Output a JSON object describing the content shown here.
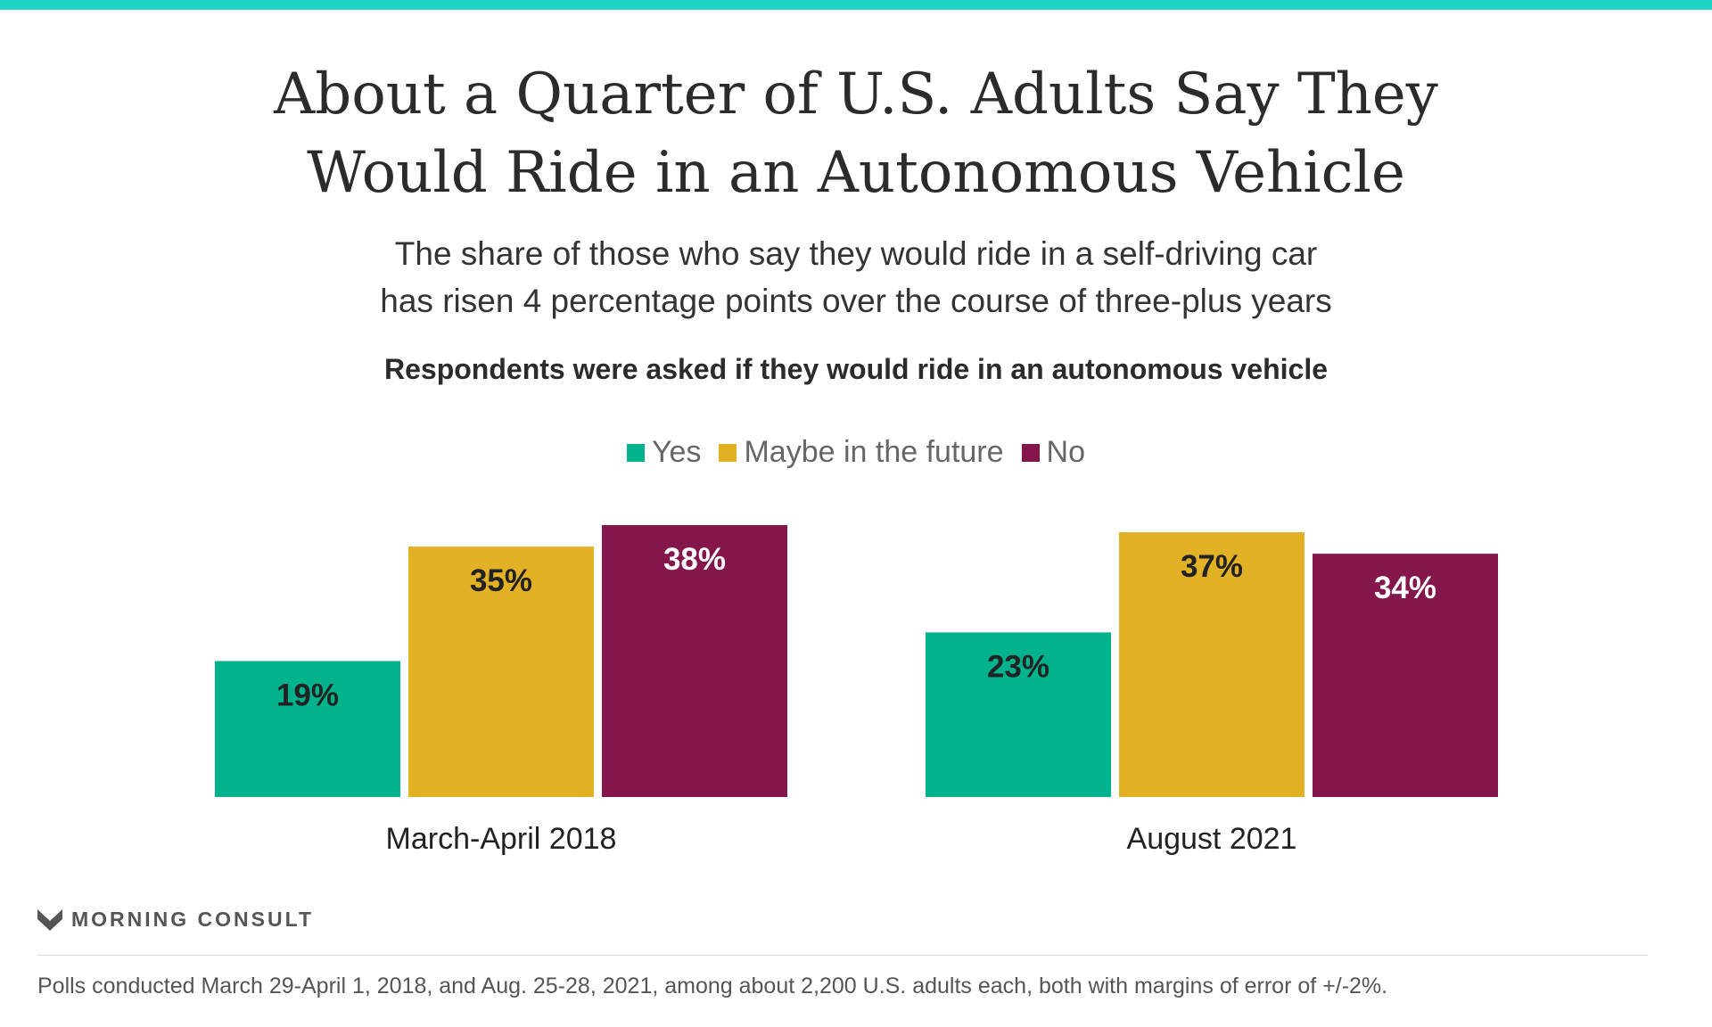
{
  "colors": {
    "top_bar": "#1fd3c6",
    "yes": "#00b38c",
    "maybe": "#e3b125",
    "no": "#84164c",
    "label_dark": "#222222",
    "label_light": "#ffffff"
  },
  "header": {
    "title_line1": "About a Quarter of U.S. Adults Say They",
    "title_line2": "Would Ride in an Autonomous Vehicle",
    "subtitle_line1": "The share of those who say they would ride in a self-driving car",
    "subtitle_line2": "has risen 4 percentage points over the course of three-plus years",
    "question": "Respondents were asked if they would ride in an autonomous vehicle"
  },
  "chart_data": {
    "type": "bar",
    "categories": [
      "March-April 2018",
      "August 2021"
    ],
    "series": [
      {
        "name": "Yes",
        "values": [
          19,
          23
        ]
      },
      {
        "name": "Maybe in the future",
        "values": [
          35,
          37
        ]
      },
      {
        "name": "No",
        "values": [
          38,
          34
        ]
      }
    ],
    "value_labels": [
      [
        "19%",
        "23%"
      ],
      [
        "35%",
        "37%"
      ],
      [
        "38%",
        "34%"
      ]
    ],
    "ylim": [
      0,
      38
    ],
    "grid": false,
    "legend_placement": "top-center",
    "axis_visible": false
  },
  "footer": {
    "brand": "MORNING CONSULT",
    "brand_icon": "morning-consult-m-icon",
    "note": "Polls conducted March 29-April 1, 2018, and Aug. 25-28, 2021, among about 2,200 U.S. adults each, both with margins of error of +/-2%."
  }
}
